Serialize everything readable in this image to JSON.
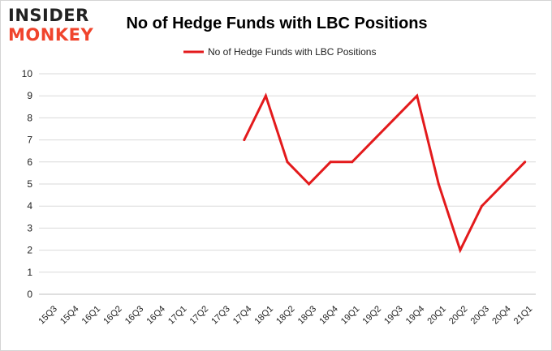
{
  "brand": {
    "logo_top": "INSIDER",
    "logo_bottom": "MONKEY"
  },
  "chart_data": {
    "type": "line",
    "title": "No of Hedge Funds with LBC Positions",
    "xlabel": "",
    "ylabel": "",
    "categories": [
      "15Q3",
      "15Q4",
      "16Q1",
      "16Q2",
      "16Q3",
      "16Q4",
      "17Q1",
      "17Q2",
      "17Q3",
      "17Q4",
      "18Q1",
      "18Q2",
      "18Q3",
      "18Q4",
      "19Q1",
      "19Q2",
      "19Q3",
      "19Q4",
      "20Q1",
      "20Q2",
      "20Q3",
      "20Q4",
      "21Q1"
    ],
    "series": [
      {
        "name": "No of Hedge Funds with LBC Positions",
        "color": "#e31a1c",
        "values": [
          null,
          null,
          null,
          null,
          null,
          null,
          null,
          null,
          null,
          7,
          9,
          6,
          5,
          6,
          6,
          7,
          8,
          9,
          5,
          2,
          4,
          5,
          6
        ]
      }
    ],
    "ylim": [
      0,
      10
    ],
    "yticks": [
      "0",
      "1",
      "2",
      "3",
      "4",
      "5",
      "6",
      "7",
      "8",
      "9",
      "10"
    ],
    "grid": true,
    "legend": "top-center"
  }
}
